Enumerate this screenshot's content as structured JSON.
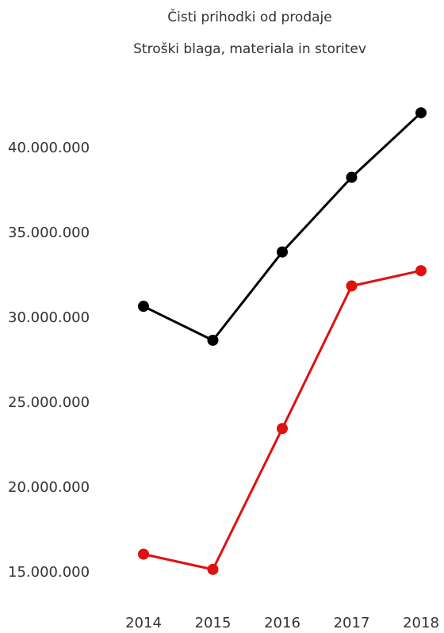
{
  "chart_data": {
    "type": "line",
    "x": [
      "2014",
      "2015",
      "2016",
      "2017",
      "2018"
    ],
    "series": [
      {
        "name": "Čisti prihodki od prodaje",
        "color": "#000000",
        "values": [
          30600000,
          28600000,
          33800000,
          38200000,
          42000000
        ]
      },
      {
        "name": "Stroški blaga, materiala in storitev",
        "color": "#e01010",
        "values": [
          16000000,
          15100000,
          23400000,
          31800000,
          32700000
        ]
      }
    ],
    "yticks": [
      "15.000.000",
      "20.000.000",
      "25.000.000",
      "30.000.000",
      "35.000.000",
      "40.000.000"
    ],
    "ytick_values": [
      15000000,
      20000000,
      25000000,
      30000000,
      35000000,
      40000000
    ],
    "ylim": [
      14000000,
      43000000
    ],
    "legend_position": "top-center",
    "grid": false
  }
}
